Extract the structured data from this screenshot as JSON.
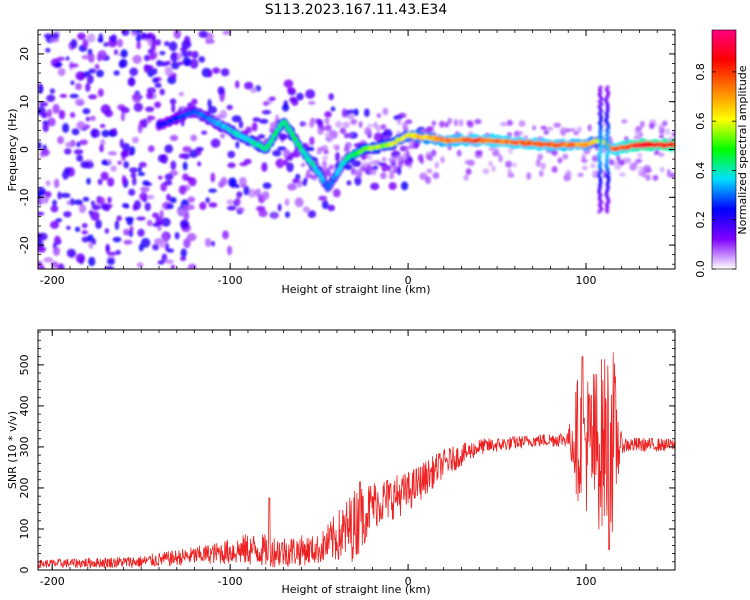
{
  "figure_title": "S113.2023.167.11.43.E34",
  "chart_data": [
    {
      "type": "heatmap",
      "title": "",
      "xlabel": "Height of straight line (km)",
      "ylabel": "Frequency (Hz)",
      "xlim": [
        -208,
        150
      ],
      "ylim": [
        -25,
        25
      ],
      "x_ticks": [
        -200,
        -100,
        0,
        100
      ],
      "y_ticks": [
        -20,
        -10,
        0,
        10,
        20
      ],
      "colorbar": {
        "label": "Normalized spectral amplitude",
        "range": [
          0,
          0.97
        ],
        "ticks": [
          0.0,
          0.2,
          0.4,
          0.6,
          0.8
        ],
        "colors": [
          "#ffffff",
          "#8000ff",
          "#0000ff",
          "#00e0ff",
          "#00ff00",
          "#ffff00",
          "#ff8000",
          "#ff0000",
          "#ff0080"
        ]
      },
      "ridge": [
        {
          "x": -140,
          "f": 5,
          "amp": 0.25
        },
        {
          "x": -120,
          "f": 8,
          "amp": 0.3
        },
        {
          "x": -105,
          "f": 5,
          "amp": 0.35
        },
        {
          "x": -95,
          "f": 3,
          "amp": 0.4
        },
        {
          "x": -80,
          "f": 0,
          "amp": 0.45
        },
        {
          "x": -70,
          "f": 6,
          "amp": 0.45
        },
        {
          "x": -60,
          "f": 0,
          "amp": 0.45
        },
        {
          "x": -50,
          "f": -5,
          "amp": 0.4
        },
        {
          "x": -45,
          "f": -8,
          "amp": 0.3
        },
        {
          "x": -40,
          "f": -5,
          "amp": 0.35
        },
        {
          "x": -35,
          "f": -2,
          "amp": 0.45
        },
        {
          "x": -25,
          "f": 0,
          "amp": 0.55
        },
        {
          "x": -10,
          "f": 1,
          "amp": 0.6
        },
        {
          "x": 0,
          "f": 3,
          "amp": 0.65
        },
        {
          "x": 20,
          "f": 2,
          "amp": 0.75
        },
        {
          "x": 40,
          "f": 2,
          "amp": 0.8
        },
        {
          "x": 60,
          "f": 1.5,
          "amp": 0.8
        },
        {
          "x": 80,
          "f": 1,
          "amp": 0.8
        },
        {
          "x": 100,
          "f": 1,
          "amp": 0.75
        },
        {
          "x": 108,
          "f": 2,
          "amp": 0.6
        },
        {
          "x": 115,
          "f": 0,
          "amp": 0.8
        },
        {
          "x": 130,
          "f": 1,
          "amp": 0.9
        },
        {
          "x": 150,
          "f": 1,
          "amp": 0.9
        }
      ]
    },
    {
      "type": "line",
      "title": "",
      "xlabel": "Height of straight line (km)",
      "ylabel": "SNR (10 * v/v)",
      "xlim": [
        -208,
        150
      ],
      "ylim": [
        0,
        585
      ],
      "x_ticks": [
        -200,
        -100,
        0,
        100
      ],
      "y_ticks": [
        0,
        100,
        200,
        300,
        400,
        500
      ],
      "color": "#ee2222",
      "envelope": [
        {
          "x": -208,
          "base": 15,
          "spread": 10
        },
        {
          "x": -150,
          "base": 20,
          "spread": 15
        },
        {
          "x": -110,
          "base": 40,
          "spread": 25
        },
        {
          "x": -90,
          "base": 50,
          "spread": 40
        },
        {
          "x": -70,
          "base": 45,
          "spread": 40
        },
        {
          "x": -50,
          "base": 50,
          "spread": 35
        },
        {
          "x": -30,
          "base": 110,
          "spread": 90
        },
        {
          "x": -20,
          "base": 160,
          "spread": 60
        },
        {
          "x": 0,
          "base": 190,
          "spread": 50
        },
        {
          "x": 20,
          "base": 260,
          "spread": 35
        },
        {
          "x": 40,
          "base": 300,
          "spread": 20
        },
        {
          "x": 70,
          "base": 315,
          "spread": 15
        },
        {
          "x": 90,
          "base": 320,
          "spread": 20
        },
        {
          "x": 95,
          "base": 320,
          "spread": 150
        },
        {
          "x": 105,
          "base": 300,
          "spread": 200
        },
        {
          "x": 115,
          "base": 320,
          "spread": 240
        },
        {
          "x": 120,
          "base": 305,
          "spread": 20
        },
        {
          "x": 150,
          "base": 305,
          "spread": 15
        }
      ],
      "peaks": [
        {
          "x": -78,
          "y": 175
        },
        {
          "x": -27,
          "y": 215
        },
        {
          "x": 98,
          "y": 520
        },
        {
          "x": 113,
          "y": 580
        },
        {
          "x": 113,
          "y": 50
        }
      ]
    }
  ]
}
